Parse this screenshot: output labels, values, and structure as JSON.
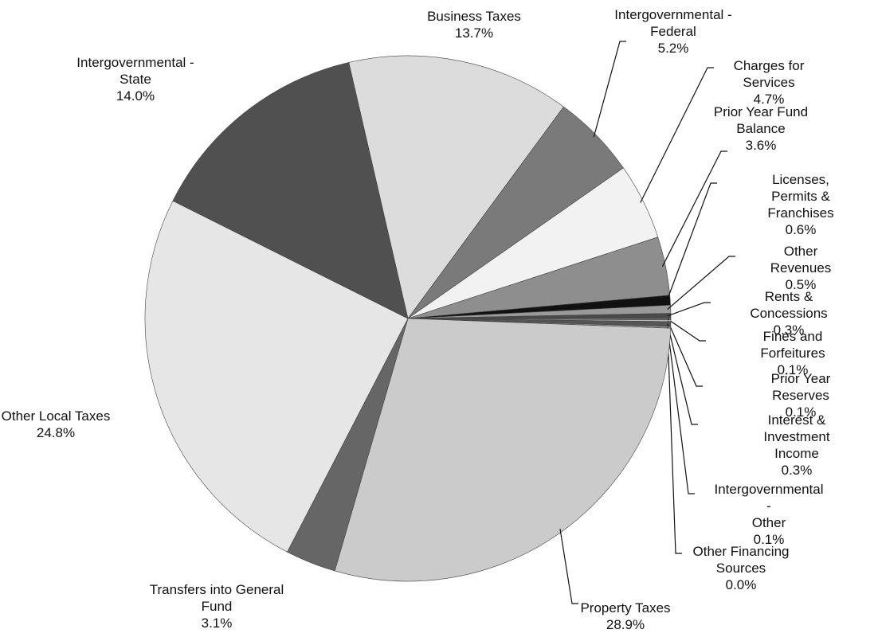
{
  "chart_data": {
    "type": "pie",
    "categories": [
      "Business Taxes",
      "Intergovernmental -\nFederal",
      "Charges for Services",
      "Prior Year Fund\nBalance",
      "Licenses, Permits &\nFranchises",
      "Other Revenues",
      "Rents & Concessions",
      "Fines and Forfeitures",
      "Prior Year Reserves",
      "Interest & Investment\nIncome",
      "Intergovernmental -\nOther",
      "Other Financing\nSources",
      "Property Taxes",
      "Transfers into General\nFund",
      "Other Local Taxes",
      "Intergovernmental -\nState"
    ],
    "values": [
      13.7,
      5.2,
      4.7,
      3.6,
      0.6,
      0.5,
      0.3,
      0.1,
      0.1,
      0.3,
      0.1,
      0.0,
      28.9,
      3.1,
      24.8,
      14.0
    ],
    "value_labels": [
      "13.7%",
      "5.2%",
      "4.7%",
      "3.6%",
      "0.6%",
      "0.5%",
      "0.3%",
      "0.1%",
      "0.1%",
      "0.3%",
      "0.1%",
      "0.0%",
      "28.9%",
      "3.1%",
      "24.8%",
      "14.0%"
    ],
    "colors": [
      "#dcdcdc",
      "#7a7a7a",
      "#f2f2f2",
      "#8e8e8e",
      "#111111",
      "#9a9a9a",
      "#4a4a4a",
      "#777777",
      "#bbbbbb",
      "#555555",
      "#999999",
      "#333333",
      "#cbcbcb",
      "#666666",
      "#e6e6e6",
      "#505050"
    ]
  }
}
